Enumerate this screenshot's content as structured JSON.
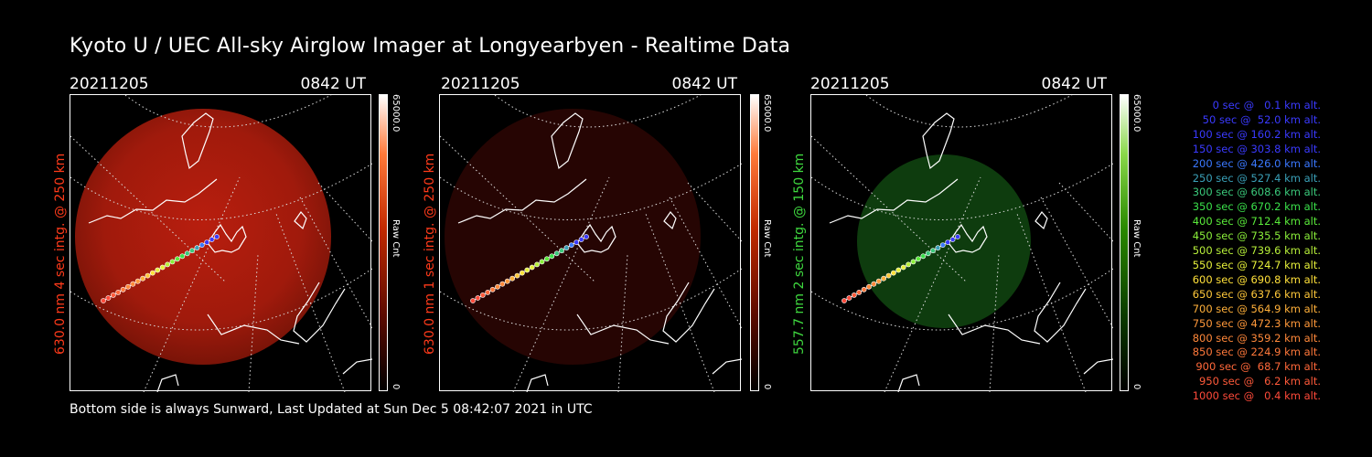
{
  "title": "Kyoto U / UEC All-sky Airglow Imager at Longyearbyen - Realtime Data",
  "footer": "Bottom side is always Sunward, Last Updated at Sun Dec  5 08:42:07 2021 in UTC",
  "panels": [
    {
      "date": "20211205",
      "time": "0842 UT",
      "ylabel": "630.0 nm 4 sec intg. @ 250 km",
      "color": "#ff3a1a",
      "cb_max": "65000.0",
      "cb_min": "0",
      "cb_unit": "Raw Cnt"
    },
    {
      "date": "20211205",
      "time": "0842 UT",
      "ylabel": "630.0 nm 1 sec intg. @ 250 km",
      "color": "#ff3a1a",
      "cb_max": "65000.0",
      "cb_min": "0",
      "cb_unit": "Raw Cnt"
    },
    {
      "date": "20211205",
      "time": "0842 UT",
      "ylabel": "557.7 nm 2 sec intg. @ 150 km",
      "color": "#3fd83f",
      "cb_max": "65000.0",
      "cb_min": "0",
      "cb_unit": "Raw Cnt"
    }
  ],
  "legend": [
    {
      "text": "0 sec @   0.1 km alt.",
      "color": "#3a3aff"
    },
    {
      "text": "50 sec @  52.0 km alt.",
      "color": "#3a3aff"
    },
    {
      "text": "100 sec @ 160.2 km alt.",
      "color": "#3a3aff"
    },
    {
      "text": "150 sec @ 303.8 km alt.",
      "color": "#3a3aff"
    },
    {
      "text": "200 sec @ 426.0 km alt.",
      "color": "#3a78ff"
    },
    {
      "text": "250 sec @ 527.4 km alt.",
      "color": "#3aa0b8"
    },
    {
      "text": "300 sec @ 608.6 km alt.",
      "color": "#3ac87a"
    },
    {
      "text": "350 sec @ 670.2 km alt.",
      "color": "#3ae04a"
    },
    {
      "text": "400 sec @ 712.4 km alt.",
      "color": "#5aea3a"
    },
    {
      "text": "450 sec @ 735.5 km alt.",
      "color": "#8aee3a"
    },
    {
      "text": "500 sec @ 739.6 km alt.",
      "color": "#b8f03a"
    },
    {
      "text": "550 sec @ 724.7 km alt.",
      "color": "#e6f03a"
    },
    {
      "text": "600 sec @ 690.8 km alt.",
      "color": "#ffe03a"
    },
    {
      "text": "650 sec @ 637.6 km alt.",
      "color": "#ffc83a"
    },
    {
      "text": "700 sec @ 564.9 km alt.",
      "color": "#ffb03a"
    },
    {
      "text": "750 sec @ 472.3 km alt.",
      "color": "#ff983a"
    },
    {
      "text": "800 sec @ 359.2 km alt.",
      "color": "#ff883a"
    },
    {
      "text": "850 sec @ 224.9 km alt.",
      "color": "#ff783a"
    },
    {
      "text": "900 sec @  68.7 km alt.",
      "color": "#ff683a"
    },
    {
      "text": "950 sec @   6.2 km alt.",
      "color": "#ff5a3a"
    },
    {
      "text": "1000 sec @   0.4 km alt.",
      "color": "#ff4a3a"
    }
  ]
}
